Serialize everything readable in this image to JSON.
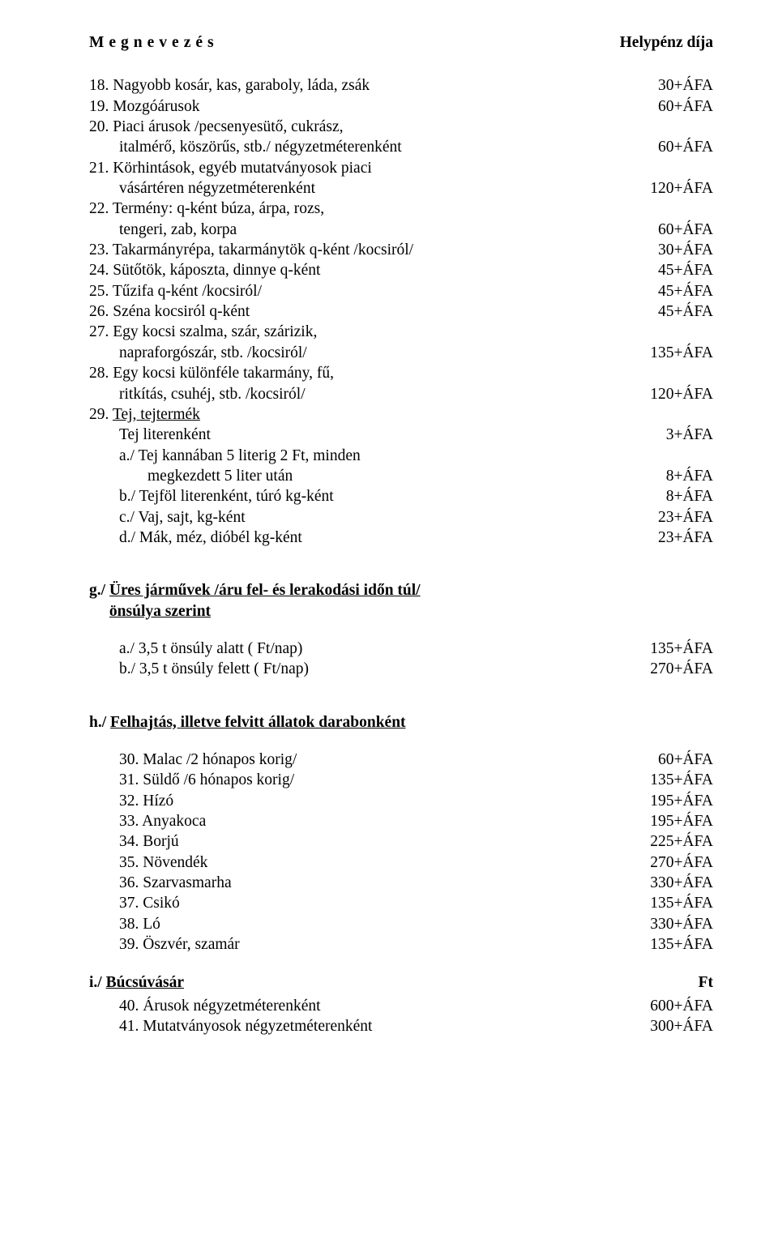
{
  "header": {
    "left": "Megnevezés",
    "right": "Helypénz díja"
  },
  "sectionF": {
    "items": [
      {
        "num": "18.",
        "text": "Nagyobb kosár, kas, garaboly, láda, zsák",
        "price": "30+ÁFA"
      },
      {
        "num": "19.",
        "text": "Mozgóárusok",
        "price": "60+ÁFA"
      },
      {
        "num": "20.",
        "text": "Piaci árusok /pecsenyesütő, cukrász,",
        "cont": "italmérő, köszörűs, stb./ négyzetméterenként",
        "price": "60+ÁFA"
      },
      {
        "num": "21.",
        "text": "Körhintások, egyéb mutatványosok piaci",
        "cont": "vásártéren négyzetméterenként",
        "price": "120+ÁFA"
      },
      {
        "num": "22.",
        "text": "Termény: q-ként búza, árpa, rozs,",
        "cont": "tengeri, zab, korpa",
        "price": "60+ÁFA"
      },
      {
        "num": "23.",
        "text": "Takarmányrépa, takarmánytök q-ként /kocsiról/",
        "price": "30+ÁFA"
      },
      {
        "num": "24.",
        "text": "Sütőtök, káposzta, dinnye q-ként",
        "price": "45+ÁFA"
      },
      {
        "num": "25.",
        "text": "Tűzifa q-ként /kocsiról/",
        "price": "45+ÁFA"
      },
      {
        "num": "26.",
        "text": "Széna kocsiról  q-ként",
        "price": "45+ÁFA"
      },
      {
        "num": "27.",
        "text": "Egy kocsi szalma, szár, szárizik,",
        "cont": "napraforgószár, stb. /kocsiról/",
        "price": "135+ÁFA"
      },
      {
        "num": "28.",
        "text": "Egy kocsi különféle takarmány, fű,",
        "cont": "ritkítás, csuhéj, stb. /kocsiról/",
        "price": "120+ÁFA"
      }
    ],
    "item29": {
      "num": "29.",
      "titleUnderlined": "Tej, tejtermék",
      "rows": [
        {
          "text": "Tej literenként",
          "price": "3+ÁFA"
        },
        {
          "text": "a./ Tej kannában 5 literig 2 Ft, minden",
          "cont": "megkezdett 5 liter után",
          "price": "8+ÁFA",
          "contIndent": "72px"
        },
        {
          "text": "b./ Tejföl literenként, túró kg-ként",
          "price": "8+ÁFA"
        },
        {
          "text": "c./ Vaj, sajt, kg-ként",
          "price": "23+ÁFA"
        },
        {
          "text": "d./ Mák, méz, dióbél kg-ként",
          "price": "23+ÁFA"
        }
      ]
    }
  },
  "sectionG": {
    "prefix": "g./",
    "line1": "Üres járművek /áru fel- és lerakodási időn túl/",
    "line2": "önsúlya szerint",
    "rows": [
      {
        "text": "a./ 3,5 t önsúly alatt   ( Ft/nap)",
        "price": "135+ÁFA"
      },
      {
        "text": "b./ 3,5 t önsúly felett ( Ft/nap)",
        "price": "270+ÁFA"
      }
    ]
  },
  "sectionH": {
    "prefix": "h./",
    "title": "Felhajtás, illetve felvitt állatok darabonként",
    "items": [
      {
        "num": "30.",
        "text": "Malac /2 hónapos korig/",
        "price": "60+ÁFA"
      },
      {
        "num": "31.",
        "text": "Süldő  /6 hónapos korig/",
        "price": "135+ÁFA"
      },
      {
        "num": "32.",
        "text": "Hízó",
        "price": "195+ÁFA"
      },
      {
        "num": "33.",
        "text": "Anyakoca",
        "price": "195+ÁFA"
      },
      {
        "num": "34.",
        "text": "Borjú",
        "price": "225+ÁFA"
      },
      {
        "num": "35.",
        "text": "Növendék",
        "price": "270+ÁFA"
      },
      {
        "num": "36.",
        "text": "Szarvasmarha",
        "price": "330+ÁFA"
      },
      {
        "num": "37.",
        "text": "Csikó",
        "price": "135+ÁFA"
      },
      {
        "num": "38.",
        "text": "Ló",
        "price": "330+ÁFA"
      },
      {
        "num": "39.",
        "text": "Öszvér, szamár",
        "price": "135+ÁFA"
      }
    ]
  },
  "sectionI": {
    "prefix": "i./",
    "title": "Búcsúvásár",
    "titleRight": "Ft",
    "items": [
      {
        "num": "40.",
        "text": "Árusok négyzetméterenként",
        "price": "600+ÁFA"
      },
      {
        "num": "41.",
        "text": "Mutatványosok négyzetméterenként",
        "price": "300+ÁFA"
      }
    ]
  }
}
